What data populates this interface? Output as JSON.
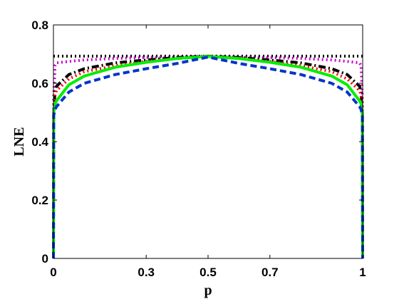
{
  "chart_data": {
    "type": "line",
    "title": "",
    "xlabel": "p",
    "ylabel": "LNE",
    "xlim": [
      0,
      1
    ],
    "ylim": [
      0,
      0.8
    ],
    "xticks": [
      0,
      0.3,
      0.5,
      0.7,
      1
    ],
    "xtick_labels": [
      "0",
      "0.3",
      "0.5",
      "0.7",
      "1"
    ],
    "yticks": [
      0,
      0.2,
      0.4,
      0.6,
      0.8
    ],
    "ytick_labels": [
      "0",
      "0.2",
      "0.4",
      "0.6",
      "0.8"
    ],
    "grid": false,
    "legend": "none",
    "series": [
      {
        "color": "#000000",
        "style": "dotted",
        "x": [
          0,
          0.0005,
          0.001,
          0.005,
          0.01,
          0.05,
          0.1,
          0.2,
          0.3,
          0.4,
          0.5,
          0.6,
          0.7,
          0.8,
          0.9,
          0.95,
          0.99,
          0.995,
          0.999,
          0.9995,
          1
        ],
        "y": [
          0.693,
          0.693,
          0.693,
          0.693,
          0.693,
          0.693,
          0.693,
          0.693,
          0.693,
          0.693,
          0.693,
          0.693,
          0.693,
          0.693,
          0.693,
          0.693,
          0.693,
          0.693,
          0.693,
          0.693,
          0.693
        ]
      },
      {
        "color": "#cc00cc",
        "style": "dotted",
        "x": [
          0,
          0.0005,
          0.001,
          0.005,
          0.01,
          0.05,
          0.1,
          0.2,
          0.3,
          0.4,
          0.5,
          0.6,
          0.7,
          0.8,
          0.9,
          0.95,
          0.99,
          0.995,
          0.999,
          0.9995,
          1
        ],
        "y": [
          0.0,
          0.3,
          0.55,
          0.66,
          0.67,
          0.675,
          0.68,
          0.685,
          0.688,
          0.69,
          0.692,
          0.69,
          0.688,
          0.685,
          0.68,
          0.675,
          0.67,
          0.66,
          0.55,
          0.3,
          0.0
        ]
      },
      {
        "color": "#000000",
        "style": "dashdot",
        "x": [
          0,
          0.0005,
          0.001,
          0.005,
          0.01,
          0.05,
          0.1,
          0.2,
          0.3,
          0.4,
          0.5,
          0.6,
          0.7,
          0.8,
          0.9,
          0.95,
          0.99,
          0.995,
          0.999,
          0.9995,
          1
        ],
        "y": [
          0.0,
          0.3,
          0.5,
          0.57,
          0.59,
          0.63,
          0.65,
          0.67,
          0.68,
          0.688,
          0.693,
          0.688,
          0.68,
          0.67,
          0.65,
          0.63,
          0.59,
          0.57,
          0.5,
          0.3,
          0.0
        ]
      },
      {
        "color": "#ff0000",
        "style": "dotted",
        "x": [
          0,
          0.0005,
          0.001,
          0.005,
          0.01,
          0.05,
          0.1,
          0.2,
          0.3,
          0.4,
          0.5,
          0.6,
          0.7,
          0.8,
          0.9,
          0.95,
          0.99,
          0.995,
          0.999,
          0.9995,
          1
        ],
        "y": [
          0.0,
          0.3,
          0.5,
          0.56,
          0.575,
          0.615,
          0.64,
          0.66,
          0.675,
          0.685,
          0.693,
          0.685,
          0.675,
          0.66,
          0.64,
          0.615,
          0.575,
          0.56,
          0.5,
          0.3,
          0.0
        ]
      },
      {
        "color": "#00ee00",
        "style": "solid",
        "x": [
          0,
          0.0005,
          0.001,
          0.005,
          0.01,
          0.05,
          0.1,
          0.2,
          0.3,
          0.4,
          0.5,
          0.6,
          0.7,
          0.8,
          0.9,
          0.95,
          0.99,
          0.995,
          0.999,
          0.9995,
          1
        ],
        "y": [
          0.0,
          0.3,
          0.5,
          0.53,
          0.54,
          0.595,
          0.625,
          0.655,
          0.672,
          0.685,
          0.692,
          0.685,
          0.672,
          0.655,
          0.625,
          0.595,
          0.54,
          0.53,
          0.5,
          0.3,
          0.0
        ]
      },
      {
        "color": "#0033cc",
        "style": "dashed",
        "x": [
          0,
          0.0005,
          0.001,
          0.005,
          0.01,
          0.05,
          0.1,
          0.2,
          0.3,
          0.4,
          0.5,
          0.6,
          0.7,
          0.8,
          0.9,
          0.95,
          0.99,
          0.995,
          0.999,
          0.9995,
          1
        ],
        "y": [
          0.0,
          0.3,
          0.49,
          0.51,
          0.52,
          0.57,
          0.6,
          0.63,
          0.65,
          0.668,
          0.69,
          0.668,
          0.65,
          0.63,
          0.6,
          0.57,
          0.52,
          0.51,
          0.49,
          0.3,
          0.0
        ]
      }
    ]
  }
}
